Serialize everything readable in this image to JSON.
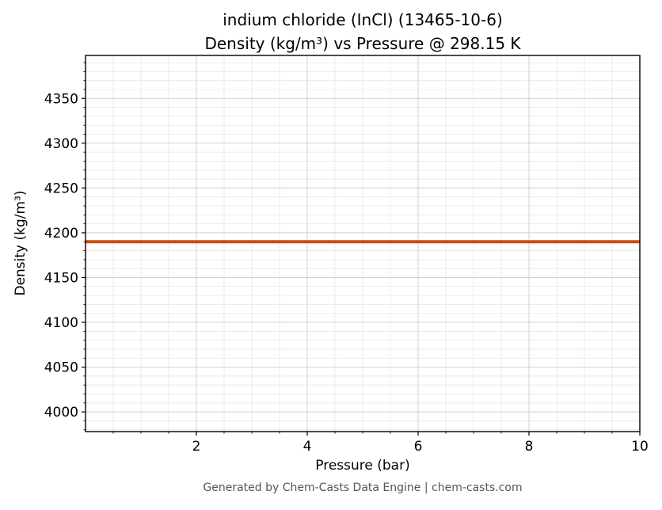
{
  "chart_data": {
    "type": "line",
    "title_line1": "indium chloride (InCl) (13465-10-6)",
    "title_line2": "Density (kg/m³) vs Pressure @ 298.15 K",
    "xlabel": "Pressure (bar)",
    "ylabel": "Density (kg/m³)",
    "footer": "Generated by Chem-Casts Data Engine | chem-casts.com",
    "series": [
      {
        "name": "density",
        "color": "#cb4b16",
        "x": [
          0,
          10
        ],
        "y": [
          4190,
          4190
        ]
      }
    ],
    "xlim": [
      0,
      10
    ],
    "ylim": [
      3978,
      4398
    ],
    "xticks": [
      2,
      4,
      6,
      8,
      10
    ],
    "yticks": [
      4000,
      4050,
      4100,
      4150,
      4200,
      4250,
      4300,
      4350
    ],
    "x_minor_step": 0.5,
    "y_minor_step": 10,
    "grid": true,
    "legend": "none",
    "colors": {
      "major_grid": "#d0d0d0",
      "minor_grid": "#e6e6e6",
      "spine": "#000000",
      "line": "#cb4b16"
    }
  }
}
